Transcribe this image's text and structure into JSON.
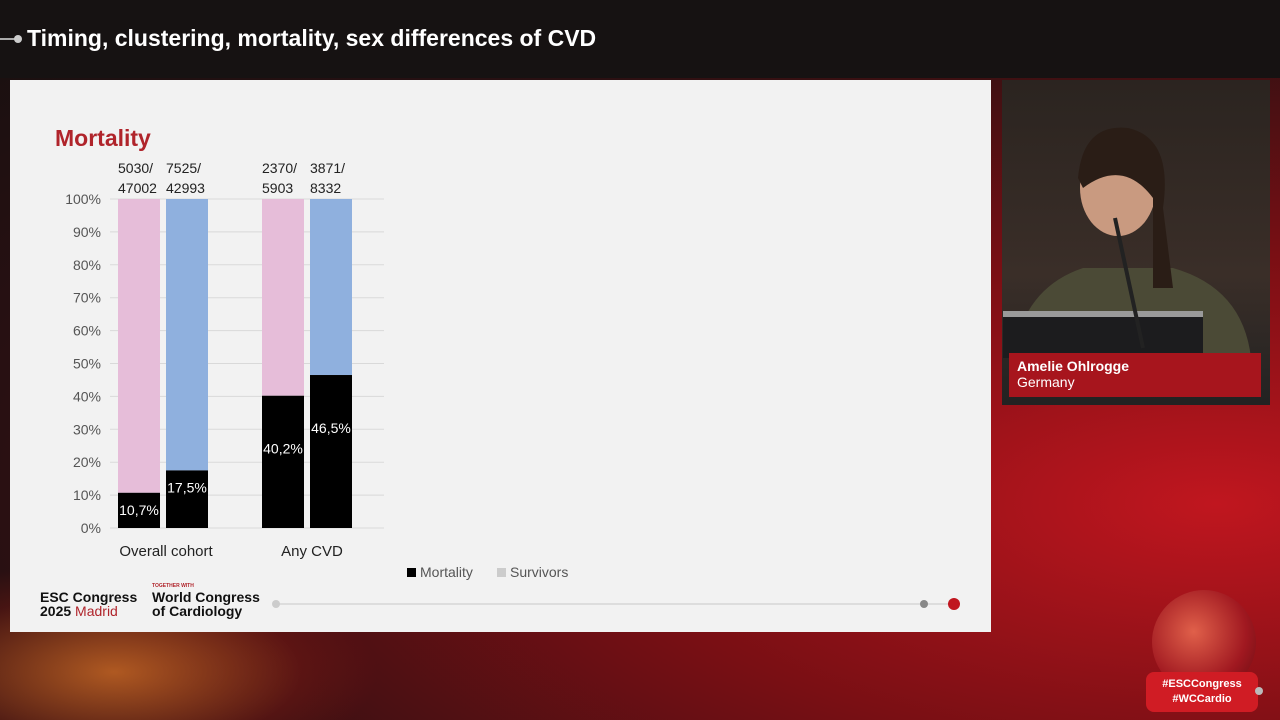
{
  "header": {
    "title": "Timing, clustering, mortality, sex differences of CVD"
  },
  "slide": {
    "title": "Mortality",
    "footer": {
      "esc_line1": "ESC Congress",
      "esc_year": "2025",
      "esc_city": "Madrid",
      "together": "TOGETHER WITH",
      "wc_line1": "World Congress",
      "wc_line2": "of Cardiology"
    }
  },
  "speaker": {
    "name": "Amelie Ohlrogge",
    "country": "Germany"
  },
  "hashtags": [
    "#ESCCongress",
    "#WCCardio"
  ],
  "chart_data": {
    "type": "bar",
    "stacked": true,
    "title": "Mortality",
    "groups": [
      "Overall cohort",
      "Any CVD"
    ],
    "bars": [
      {
        "group": "Overall cohort",
        "count_label": [
          "5030/",
          "47002"
        ],
        "mortality": 10.7,
        "label": "10,7%",
        "survivor_color": "#e6bdd9"
      },
      {
        "group": "Overall cohort",
        "count_label": [
          "7525/",
          "42993"
        ],
        "mortality": 17.5,
        "label": "17,5%",
        "survivor_color": "#8fb0de"
      },
      {
        "group": "Any CVD",
        "count_label": [
          "2370/",
          "5903"
        ],
        "mortality": 40.2,
        "label": "40,2%",
        "survivor_color": "#e6bdd9"
      },
      {
        "group": "Any CVD",
        "count_label": [
          "3871/",
          "8332"
        ],
        "mortality": 46.5,
        "label": "46,5%",
        "survivor_color": "#8fb0de"
      }
    ],
    "yticks": [
      "0%",
      "10%",
      "20%",
      "30%",
      "40%",
      "50%",
      "60%",
      "70%",
      "80%",
      "90%",
      "100%"
    ],
    "ylim": [
      0,
      100
    ],
    "legend": [
      {
        "name": "Mortality",
        "color": "#000000"
      },
      {
        "name": "Survivors",
        "color": "#cccccc"
      }
    ],
    "legend_position": "bottom",
    "grid": true
  }
}
